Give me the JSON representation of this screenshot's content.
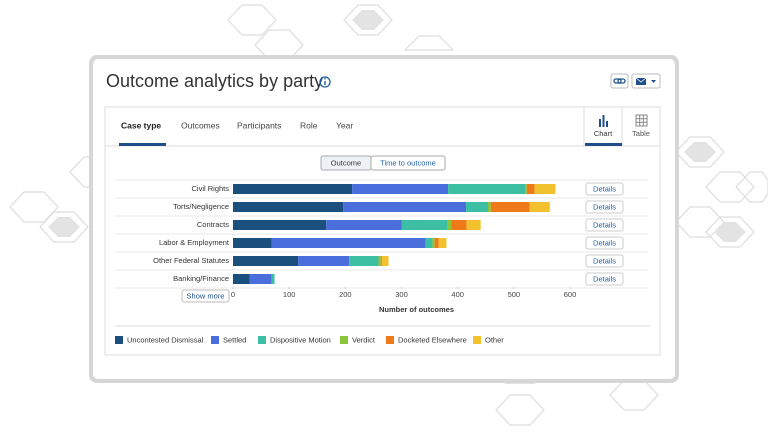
{
  "header": {
    "title": "Outcome analytics by party"
  },
  "tabs": [
    "Case type",
    "Outcomes",
    "Participants",
    "Role",
    "Year"
  ],
  "views": [
    "Chart",
    "Table"
  ],
  "toggle": [
    "Outcome",
    "Time to outcome"
  ],
  "row_action": "Details",
  "show_more": "Show more",
  "chart_data": {
    "type": "bar",
    "orientation": "horizontal",
    "stacked": true,
    "categories": [
      "Civil Rights",
      "Torts/Negligence",
      "Contracts",
      "Labor & Employment",
      "Other Federal Statutes",
      "Banking/Finance"
    ],
    "series": [
      {
        "name": "Uncontested Dismissal",
        "color": "#1b4f7d",
        "values": [
          212,
          196,
          166,
          69,
          116,
          30
        ]
      },
      {
        "name": "Settled",
        "color": "#4a6fdd",
        "values": [
          171,
          219,
          134,
          274,
          91,
          39
        ]
      },
      {
        "name": "Dispositive Motion",
        "color": "#3dbfa3",
        "values": [
          137,
          39,
          82,
          12,
          52,
          5
        ]
      },
      {
        "name": "Verdict",
        "color": "#8cc43a",
        "values": [
          3,
          5,
          7,
          4,
          4,
          0
        ]
      },
      {
        "name": "Docketed Elsewhere",
        "color": "#ef7a1a",
        "values": [
          14,
          69,
          27,
          7,
          2,
          0
        ]
      },
      {
        "name": "Other",
        "color": "#f2c12e",
        "values": [
          37,
          36,
          25,
          14,
          12,
          0
        ]
      }
    ],
    "xlim": [
      0,
      600
    ],
    "xticks": [
      0,
      100,
      200,
      300,
      400,
      500,
      600
    ],
    "x_label": "Number of outcomes",
    "grid": false,
    "legend": "bottom"
  }
}
